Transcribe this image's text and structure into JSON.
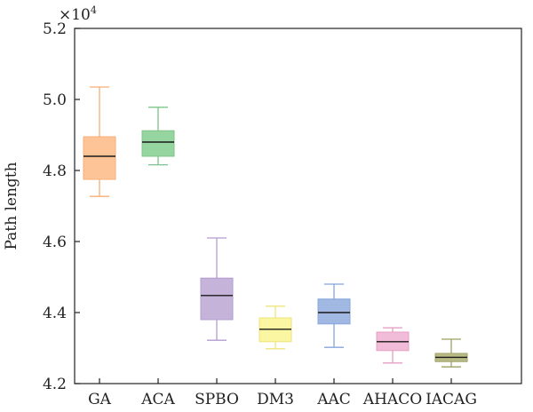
{
  "chart_data": {
    "type": "box",
    "title": "",
    "xlabel": "",
    "ylabel": "Path length",
    "y_multiplier": "×10",
    "y_multiplier_exp": "4",
    "ylim": [
      4.2,
      5.2
    ],
    "yticks": [
      "4.2",
      "4.4",
      "4.6",
      "4.8",
      "5.0",
      "5.2"
    ],
    "ytick_values": [
      4.2,
      4.4,
      4.6,
      4.8,
      5.0,
      5.2
    ],
    "grid": false,
    "legend": "none",
    "categories": [
      "GA",
      "ACA",
      "SPBO",
      "DM3",
      "AAC",
      "AHACO",
      "IACAG"
    ],
    "boxes": [
      {
        "label": "GA",
        "min": 4.727,
        "q1": 4.775,
        "median": 4.84,
        "q3": 4.895,
        "max": 5.035,
        "color": "#fdc497",
        "edge": "#f6ae77"
      },
      {
        "label": "ACA",
        "min": 4.816,
        "q1": 4.84,
        "median": 4.88,
        "q3": 4.912,
        "max": 4.978,
        "color": "#96d4a0",
        "edge": "#7cc489"
      },
      {
        "label": "SPBO",
        "min": 4.322,
        "q1": 4.38,
        "median": 4.448,
        "q3": 4.497,
        "max": 4.61,
        "color": "#c6b3d9",
        "edge": "#b39cd0"
      },
      {
        "label": "DM3",
        "min": 4.298,
        "q1": 4.318,
        "median": 4.353,
        "q3": 4.385,
        "max": 4.418,
        "color": "#fbf6a2",
        "edge": "#ece47e"
      },
      {
        "label": "AAC",
        "min": 4.302,
        "q1": 4.368,
        "median": 4.4,
        "q3": 4.438,
        "max": 4.48,
        "color": "#a1b9e2",
        "edge": "#86a4da"
      },
      {
        "label": "AHACO",
        "min": 4.258,
        "q1": 4.293,
        "median": 4.318,
        "q3": 4.345,
        "max": 4.357,
        "color": "#f1bcd8",
        "edge": "#e59fc4"
      },
      {
        "label": "IACAG",
        "min": 4.247,
        "q1": 4.262,
        "median": 4.274,
        "q3": 4.285,
        "max": 4.325,
        "color": "#b9bb87",
        "edge": "#9ea064"
      }
    ]
  }
}
